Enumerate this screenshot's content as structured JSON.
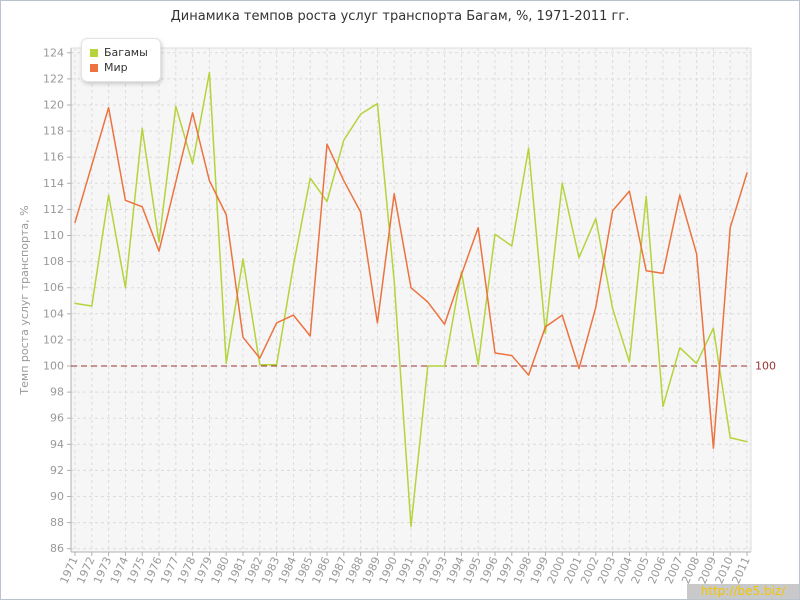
{
  "title": "Динамика темпов роста услуг транспорта Багам, %, 1971-2011 гг.",
  "legend": {
    "items": [
      {
        "label": "Багамы",
        "color": "#b5d33b"
      },
      {
        "label": "Мир",
        "color": "#ec7340"
      }
    ]
  },
  "watermark": {
    "text": "http://be5.biz/",
    "bg": "#c9c9c9",
    "fg": "#f2c500"
  },
  "y_axis": {
    "title": "Темп роста услуг транспорта, %",
    "min": 86,
    "max": 124,
    "step": 2
  },
  "x_axis": {
    "first": 1971,
    "last": 2011
  },
  "guide": {
    "value": 100,
    "label": "100",
    "color": "#993333"
  },
  "style_colors": {
    "plot_bg": "#f6f6f6",
    "grid": "#dcdcdc",
    "axis": "#b0b0b0",
    "tick_label": "#999999",
    "title_text": "#333333"
  },
  "chart_data": {
    "type": "line",
    "title": "Динамика темпов роста услуг транспорта Багам, %, 1971-2011 гг.",
    "xlabel": "",
    "ylabel": "Темп роста услуг транспорта, %",
    "ylim": [
      86,
      124
    ],
    "y_tick_step": 2,
    "grid": "on",
    "legend_position": "top-left",
    "guide_line_y": 100,
    "x": [
      1971,
      1972,
      1973,
      1974,
      1975,
      1976,
      1977,
      1978,
      1979,
      1980,
      1981,
      1982,
      1983,
      1984,
      1985,
      1986,
      1987,
      1988,
      1989,
      1990,
      1991,
      1992,
      1993,
      1994,
      1995,
      1996,
      1997,
      1998,
      1999,
      2000,
      2001,
      2002,
      2003,
      2004,
      2005,
      2006,
      2007,
      2008,
      2009,
      2010,
      2011
    ],
    "series": [
      {
        "name": "Багамы",
        "color": "#b5d33b",
        "values": [
          104.8,
          104.6,
          113.1,
          106.0,
          118.2,
          109.5,
          119.9,
          115.5,
          122.5,
          100.2,
          108.2,
          100.1,
          100.1,
          107.7,
          114.4,
          112.6,
          117.3,
          119.3,
          120.1,
          106.5,
          87.7,
          100.0,
          100.0,
          107.2,
          100.1,
          110.1,
          109.2,
          116.7,
          102.5,
          114.0,
          108.3,
          111.3,
          104.4,
          100.3,
          113.0,
          96.9,
          101.4,
          100.2,
          102.9,
          94.5,
          94.2
        ]
      },
      {
        "name": "Мир",
        "color": "#ec7340",
        "values": [
          111.0,
          115.4,
          119.8,
          112.7,
          112.2,
          108.8,
          114.1,
          119.4,
          114.2,
          111.6,
          102.2,
          100.6,
          103.3,
          103.9,
          102.3,
          117.0,
          114.2,
          111.8,
          103.3,
          113.2,
          106.0,
          104.9,
          103.2,
          107.0,
          110.6,
          101.0,
          100.8,
          99.3,
          103.0,
          103.9,
          99.8,
          104.5,
          111.9,
          113.4,
          107.3,
          107.1,
          113.1,
          108.6,
          93.7,
          110.6,
          114.8
        ]
      }
    ]
  }
}
